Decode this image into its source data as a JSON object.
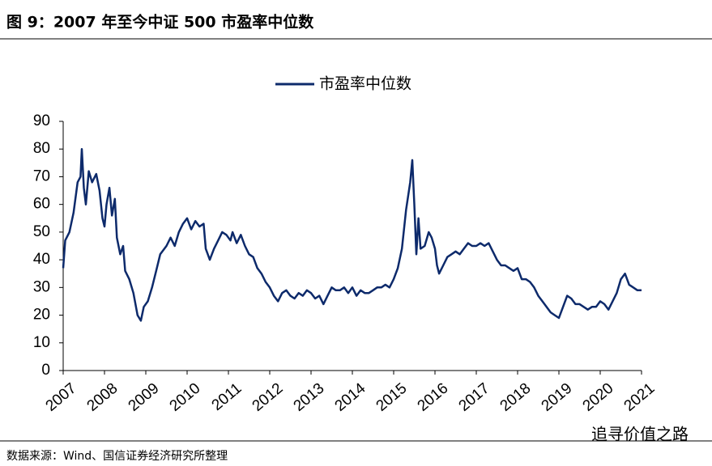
{
  "chart_data": {
    "type": "line",
    "title": "图 9：2007 年至今中证 500 市盈率中位数",
    "source": "数据来源：Wind、国信证券经济研究所整理",
    "watermark": "追寻价值之路",
    "x": [
      2007.0,
      2007.05,
      2007.15,
      2007.25,
      2007.35,
      2007.42,
      2007.45,
      2007.5,
      2007.55,
      2007.62,
      2007.7,
      2007.8,
      2007.88,
      2007.95,
      2008.0,
      2008.05,
      2008.12,
      2008.18,
      2008.25,
      2008.3,
      2008.38,
      2008.45,
      2008.5,
      2008.6,
      2008.7,
      2008.8,
      2008.88,
      2008.95,
      2009.05,
      2009.15,
      2009.25,
      2009.35,
      2009.5,
      2009.6,
      2009.7,
      2009.8,
      2009.9,
      2010.0,
      2010.1,
      2010.2,
      2010.3,
      2010.4,
      2010.45,
      2010.55,
      2010.65,
      2010.75,
      2010.85,
      2010.95,
      2011.05,
      2011.1,
      2011.2,
      2011.3,
      2011.4,
      2011.5,
      2011.6,
      2011.7,
      2011.8,
      2011.9,
      2012.0,
      2012.1,
      2012.2,
      2012.3,
      2012.4,
      2012.5,
      2012.6,
      2012.7,
      2012.8,
      2012.9,
      2013.0,
      2013.1,
      2013.2,
      2013.3,
      2013.4,
      2013.5,
      2013.6,
      2013.7,
      2013.8,
      2013.9,
      2014.0,
      2014.1,
      2014.2,
      2014.3,
      2014.4,
      2014.5,
      2014.6,
      2014.7,
      2014.8,
      2014.9,
      2015.0,
      2015.1,
      2015.2,
      2015.3,
      2015.4,
      2015.45,
      2015.5,
      2015.55,
      2015.6,
      2015.65,
      2015.75,
      2015.85,
      2015.92,
      2016.0,
      2016.05,
      2016.1,
      2016.2,
      2016.3,
      2016.4,
      2016.5,
      2016.6,
      2016.7,
      2016.8,
      2016.9,
      2017.0,
      2017.1,
      2017.2,
      2017.3,
      2017.4,
      2017.5,
      2017.6,
      2017.7,
      2017.8,
      2017.9,
      2018.0,
      2018.1,
      2018.2,
      2018.3,
      2018.4,
      2018.5,
      2018.6,
      2018.7,
      2018.8,
      2018.9,
      2019.0,
      2019.1,
      2019.2,
      2019.3,
      2019.4,
      2019.5,
      2019.6,
      2019.7,
      2019.8,
      2019.9,
      2020.0,
      2020.1,
      2020.2,
      2020.3,
      2020.4,
      2020.5,
      2020.6,
      2020.7,
      2020.8,
      2020.9,
      2021.0
    ],
    "series": [
      {
        "name": "市盈率中位数",
        "color": "#0d2a6b",
        "values": [
          37,
          47,
          50,
          57,
          68,
          70,
          80,
          66,
          60,
          72,
          68,
          71,
          65,
          55,
          52,
          60,
          66,
          56,
          62,
          48,
          42,
          45,
          36,
          33,
          28,
          20,
          18,
          23,
          25,
          30,
          36,
          42,
          45,
          48,
          45,
          50,
          53,
          55,
          51,
          54,
          52,
          53,
          44,
          40,
          44,
          47,
          50,
          49,
          47,
          50,
          46,
          49,
          45,
          42,
          41,
          37,
          35,
          32,
          30,
          27,
          25,
          28,
          29,
          27,
          26,
          28,
          27,
          29,
          28,
          26,
          27,
          24,
          27,
          30,
          29,
          29,
          30,
          28,
          30,
          27,
          29,
          28,
          28,
          29,
          30,
          30,
          31,
          30,
          33,
          37,
          44,
          58,
          68,
          76,
          60,
          42,
          55,
          44,
          45,
          50,
          48,
          44,
          38,
          35,
          38,
          41,
          42,
          43,
          42,
          44,
          46,
          45,
          45,
          46,
          45,
          46,
          43,
          40,
          38,
          38,
          37,
          36,
          37,
          33,
          33,
          32,
          30,
          27,
          25,
          23,
          21,
          20,
          19,
          23,
          27,
          26,
          24,
          24,
          23,
          22,
          23,
          23,
          25,
          24,
          22,
          25,
          28,
          33,
          35,
          31,
          30,
          29,
          29
        ]
      }
    ],
    "xlim": [
      2007,
      2021
    ],
    "xticks": [
      2007,
      2008,
      2009,
      2010,
      2011,
      2012,
      2013,
      2014,
      2015,
      2016,
      2017,
      2018,
      2019,
      2020,
      2021
    ],
    "ylim": [
      0,
      90
    ],
    "yticks": [
      0,
      10,
      20,
      30,
      40,
      50,
      60,
      70,
      80,
      90
    ],
    "legend": "top"
  }
}
